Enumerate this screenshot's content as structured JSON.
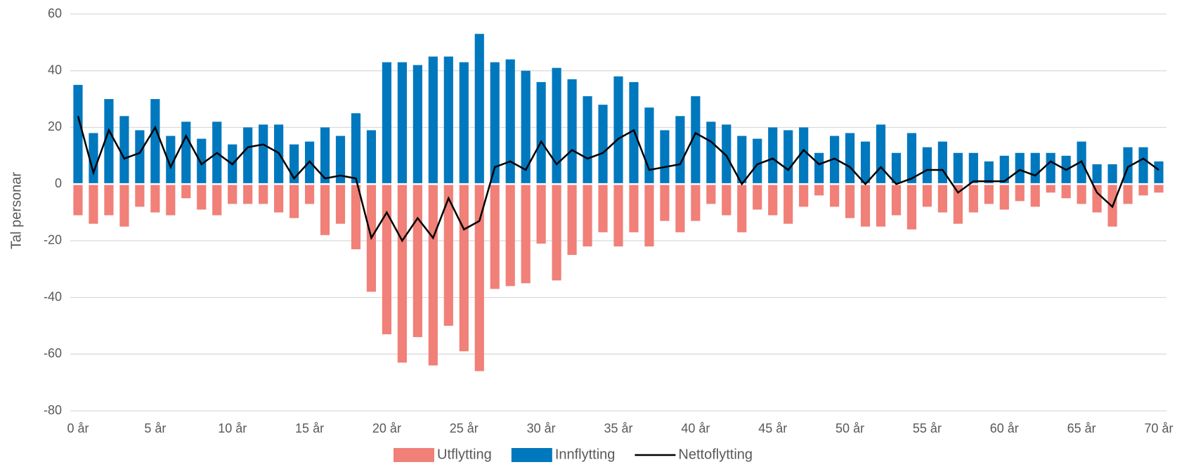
{
  "chart_data": {
    "type": "bar",
    "y_label": "Tal personar",
    "categories": [
      "0 år",
      null,
      null,
      null,
      null,
      "5 år",
      null,
      null,
      null,
      null,
      "10 år",
      null,
      null,
      null,
      null,
      "15 år",
      null,
      null,
      null,
      null,
      "20 år",
      null,
      null,
      null,
      null,
      "25 år",
      null,
      null,
      null,
      null,
      "30 år",
      null,
      null,
      null,
      null,
      "35 år",
      null,
      null,
      null,
      null,
      "40 år",
      null,
      null,
      null,
      null,
      "45 år",
      null,
      null,
      null,
      null,
      "50 år",
      null,
      null,
      null,
      null,
      "55 år",
      null,
      null,
      null,
      null,
      "60 år",
      null,
      null,
      null,
      null,
      "65 år",
      null,
      null,
      null,
      null,
      "70 år"
    ],
    "series": [
      {
        "name": "Utflytting",
        "color": "#f08078",
        "kind": "bar",
        "values": [
          -11,
          -14,
          -11,
          -15,
          -8,
          -10,
          -11,
          -5,
          -9,
          -11,
          -7,
          -7,
          -7,
          -10,
          -12,
          -7,
          -18,
          -14,
          -23,
          -38,
          -53,
          -63,
          -54,
          -64,
          -50,
          -59,
          -66,
          -37,
          -36,
          -35,
          -21,
          -34,
          -25,
          -22,
          -17,
          -22,
          -17,
          -22,
          -13,
          -17,
          -13,
          -7,
          -11,
          -17,
          -9,
          -11,
          -14,
          -8,
          -4,
          -8,
          -12,
          -15,
          -15,
          -11,
          -16,
          -8,
          -10,
          -14,
          -10,
          -7,
          -9,
          -6,
          -8,
          -3,
          -5,
          -7,
          -10,
          -15,
          -7,
          -4,
          -3
        ]
      },
      {
        "name": "Innflytting",
        "color": "#0078be",
        "kind": "bar",
        "values": [
          35,
          18,
          30,
          24,
          19,
          30,
          17,
          22,
          16,
          22,
          14,
          20,
          21,
          21,
          14,
          15,
          20,
          17,
          25,
          19,
          43,
          43,
          42,
          45,
          45,
          43,
          53,
          43,
          44,
          40,
          36,
          41,
          37,
          31,
          28,
          38,
          36,
          27,
          19,
          24,
          31,
          22,
          21,
          17,
          16,
          20,
          19,
          20,
          11,
          17,
          18,
          15,
          21,
          11,
          18,
          13,
          15,
          11,
          11,
          8,
          10,
          11,
          11,
          11,
          10,
          15,
          7,
          7,
          13,
          13,
          8
        ]
      },
      {
        "name": "Nettoflytting",
        "color": "#000000",
        "kind": "line",
        "values": [
          24,
          4,
          19,
          9,
          11,
          20,
          6,
          17,
          7,
          11,
          7,
          13,
          14,
          11,
          2,
          8,
          2,
          3,
          2,
          -19,
          -10,
          -20,
          -12,
          -19,
          -5,
          -16,
          -13,
          6,
          8,
          5,
          15,
          7,
          12,
          9,
          11,
          16,
          19,
          5,
          6,
          7,
          18,
          15,
          10,
          0,
          7,
          9,
          5,
          12,
          7,
          9,
          6,
          0,
          6,
          0,
          2,
          5,
          5,
          -3,
          1,
          1,
          1,
          5,
          3,
          8,
          5,
          8,
          -3,
          -8,
          6,
          9,
          5
        ]
      }
    ],
    "ylim": [
      -80,
      60
    ],
    "yticks": [
      -80,
      -60,
      -40,
      -20,
      0,
      20,
      40,
      60
    ],
    "grid": true,
    "legend": "bottom"
  }
}
